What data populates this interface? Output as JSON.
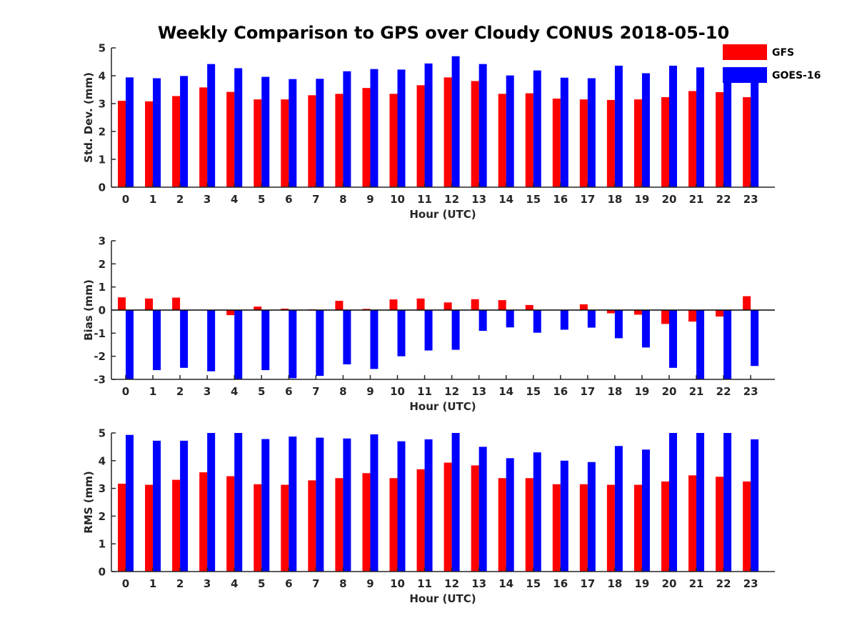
{
  "title": "Weekly Comparison to GPS over Cloudy CONUS 2018-05-10",
  "legend": {
    "placement": "top-right",
    "entries": [
      {
        "name": "GFS",
        "color": "#ff0000"
      },
      {
        "name": "GOES-16",
        "color": "#0000ff"
      }
    ]
  },
  "chart_data": [
    {
      "type": "bar",
      "ylabel": "Std. Dev. (mm)",
      "xlabel": "Hour (UTC)",
      "categories": [
        "0",
        "1",
        "2",
        "3",
        "4",
        "5",
        "6",
        "7",
        "8",
        "9",
        "10",
        "11",
        "12",
        "13",
        "14",
        "15",
        "16",
        "17",
        "18",
        "19",
        "20",
        "21",
        "22",
        "23"
      ],
      "ylim": [
        0,
        5
      ],
      "yticks": [
        0,
        1,
        2,
        3,
        4,
        5
      ],
      "series": [
        {
          "name": "GFS",
          "color": "#ff0000",
          "values": [
            3.1,
            3.08,
            3.27,
            3.58,
            3.42,
            3.15,
            3.15,
            3.3,
            3.35,
            3.56,
            3.35,
            3.66,
            3.94,
            3.81,
            3.35,
            3.37,
            3.18,
            3.15,
            3.13,
            3.15,
            3.23,
            3.45,
            3.41,
            3.23
          ]
        },
        {
          "name": "GOES-16",
          "color": "#0000ff",
          "values": [
            3.94,
            3.91,
            3.99,
            4.42,
            4.27,
            3.96,
            3.88,
            3.89,
            4.16,
            4.24,
            4.22,
            4.44,
            4.7,
            4.42,
            4.01,
            4.19,
            3.93,
            3.91,
            4.36,
            4.09,
            4.36,
            4.3,
            4.15,
            3.75
          ]
        }
      ]
    },
    {
      "type": "bar",
      "ylabel": "Bias (mm)",
      "xlabel": "Hour (UTC)",
      "categories": [
        "0",
        "1",
        "2",
        "3",
        "4",
        "5",
        "6",
        "7",
        "8",
        "9",
        "10",
        "11",
        "12",
        "13",
        "14",
        "15",
        "16",
        "17",
        "18",
        "19",
        "20",
        "21",
        "22",
        "23"
      ],
      "ylim": [
        -3,
        3
      ],
      "yticks": [
        -3,
        -2,
        -1,
        0,
        1,
        2,
        3
      ],
      "zero_line": true,
      "series": [
        {
          "name": "GFS",
          "color": "#ff0000",
          "values": [
            0.55,
            0.5,
            0.54,
            0.0,
            -0.22,
            0.15,
            0.06,
            0.03,
            0.4,
            0.05,
            0.46,
            0.5,
            0.33,
            0.47,
            0.43,
            0.22,
            0.0,
            0.25,
            -0.14,
            -0.2,
            -0.6,
            -0.5,
            -0.28,
            0.6
          ]
        },
        {
          "name": "GOES-16",
          "color": "#0000ff",
          "values": [
            -3.0,
            -2.6,
            -2.5,
            -2.65,
            -3.0,
            -2.6,
            -2.95,
            -2.85,
            -2.35,
            -2.55,
            -2.0,
            -1.75,
            -1.72,
            -0.9,
            -0.75,
            -0.98,
            -0.85,
            -0.76,
            -1.22,
            -1.62,
            -2.5,
            -3.0,
            -3.0,
            -2.42
          ]
        }
      ]
    },
    {
      "type": "bar",
      "ylabel": "RMS (mm)",
      "xlabel": "Hour (UTC)",
      "categories": [
        "0",
        "1",
        "2",
        "3",
        "4",
        "5",
        "6",
        "7",
        "8",
        "9",
        "10",
        "11",
        "12",
        "13",
        "14",
        "15",
        "16",
        "17",
        "18",
        "19",
        "20",
        "21",
        "22",
        "23"
      ],
      "ylim": [
        0,
        5
      ],
      "yticks": [
        0,
        1,
        2,
        3,
        4,
        5
      ],
      "series": [
        {
          "name": "GFS",
          "color": "#ff0000",
          "values": [
            3.17,
            3.13,
            3.31,
            3.58,
            3.44,
            3.15,
            3.13,
            3.29,
            3.37,
            3.55,
            3.37,
            3.69,
            3.93,
            3.83,
            3.37,
            3.37,
            3.15,
            3.15,
            3.13,
            3.13,
            3.25,
            3.47,
            3.42,
            3.25
          ]
        },
        {
          "name": "GOES-16",
          "color": "#0000ff",
          "values": [
            4.93,
            4.72,
            4.72,
            5.0,
            5.0,
            4.78,
            4.87,
            4.83,
            4.8,
            4.95,
            4.7,
            4.77,
            5.0,
            4.5,
            4.09,
            4.3,
            4.0,
            3.95,
            4.53,
            4.4,
            5.0,
            5.0,
            5.0,
            4.77
          ]
        }
      ]
    }
  ]
}
